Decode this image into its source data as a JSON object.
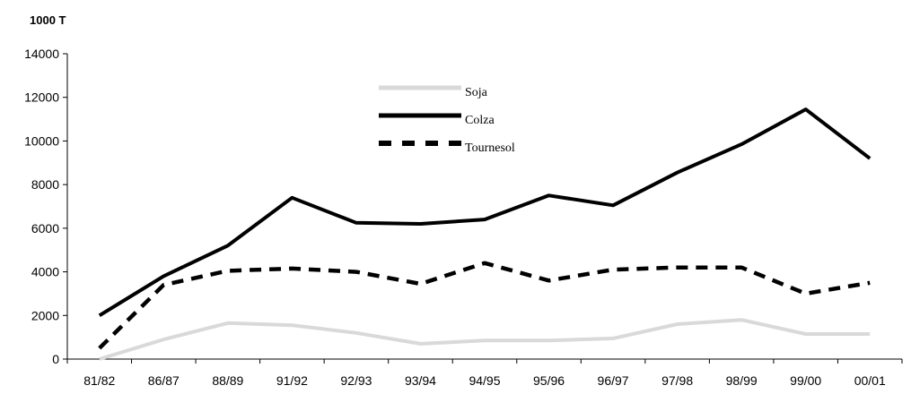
{
  "chart_data": {
    "type": "line",
    "title": "",
    "ylabel": "1000 T",
    "xlabel": "",
    "ylim": [
      0,
      14000
    ],
    "y_ticks": [
      "0",
      "2000",
      "4000",
      "6000",
      "8000",
      "10000",
      "12000",
      "14000"
    ],
    "categories": [
      "81/82",
      "86/87",
      "88/89",
      "91/92",
      "92/93",
      "93/94",
      "94/95",
      "95/96",
      "96/97",
      "97/98",
      "98/99",
      "99/00",
      "00/01"
    ],
    "grid": false,
    "legend_position": "top-center",
    "series": [
      {
        "name": "Soja",
        "color": "#d9d9d9",
        "style": "solid",
        "values": [
          0,
          900,
          1650,
          1550,
          1200,
          700,
          850,
          850,
          950,
          1600,
          1800,
          1150,
          1150
        ]
      },
      {
        "name": "Colza",
        "color": "#000000",
        "style": "solid",
        "values": [
          2000,
          3800,
          5200,
          7400,
          6250,
          6200,
          6400,
          7500,
          7050,
          8550,
          9850,
          11450,
          9200
        ]
      },
      {
        "name": "Tournesol",
        "color": "#000000",
        "style": "dashed",
        "values": [
          500,
          3400,
          4050,
          4150,
          4000,
          3450,
          4400,
          3600,
          4100,
          4200,
          4200,
          3000,
          3500
        ]
      }
    ]
  }
}
